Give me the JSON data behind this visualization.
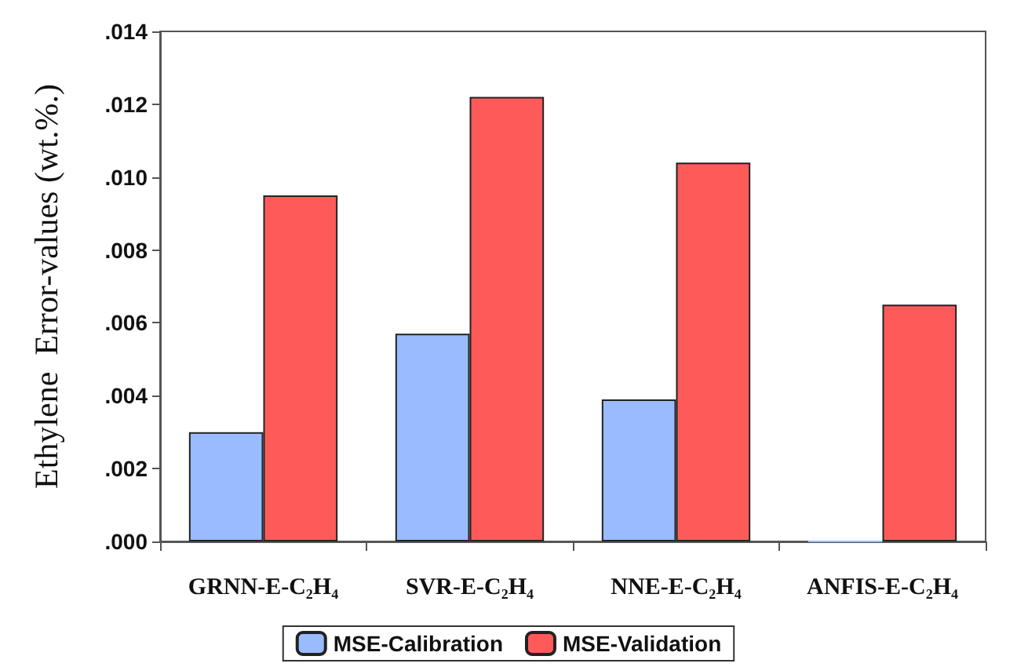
{
  "chart_data": {
    "type": "bar",
    "ylabel": "Ethylene  Error-values (wt.%.)",
    "categories": [
      "GRNN-E-C₂H₄",
      "SVR-E-C₂H₄",
      "NNE-E-C₂H₄",
      "ANFIS-E-C₂H₄"
    ],
    "series": [
      {
        "name": "MSE-Calibration",
        "color": "#99bbff",
        "values": [
          0.003,
          0.0057,
          0.0039,
          0.0
        ]
      },
      {
        "name": "MSE-Validation",
        "color": "#ff5a5a",
        "values": [
          0.0095,
          0.0122,
          0.0104,
          0.0065
        ]
      }
    ],
    "ylim": [
      0,
      0.014
    ],
    "yticks": [
      {
        "value": 0,
        "label": ".000"
      },
      {
        "value": 0.002,
        "label": ".002"
      },
      {
        "value": 0.004,
        "label": ".004"
      },
      {
        "value": 0.006,
        "label": ".006"
      },
      {
        "value": 0.008,
        "label": ".008"
      },
      {
        "value": 0.01,
        "label": ".010"
      },
      {
        "value": 0.012,
        "label": ".012"
      },
      {
        "value": 0.014,
        "label": ".014"
      }
    ],
    "grid": false,
    "legend": "bottom"
  }
}
